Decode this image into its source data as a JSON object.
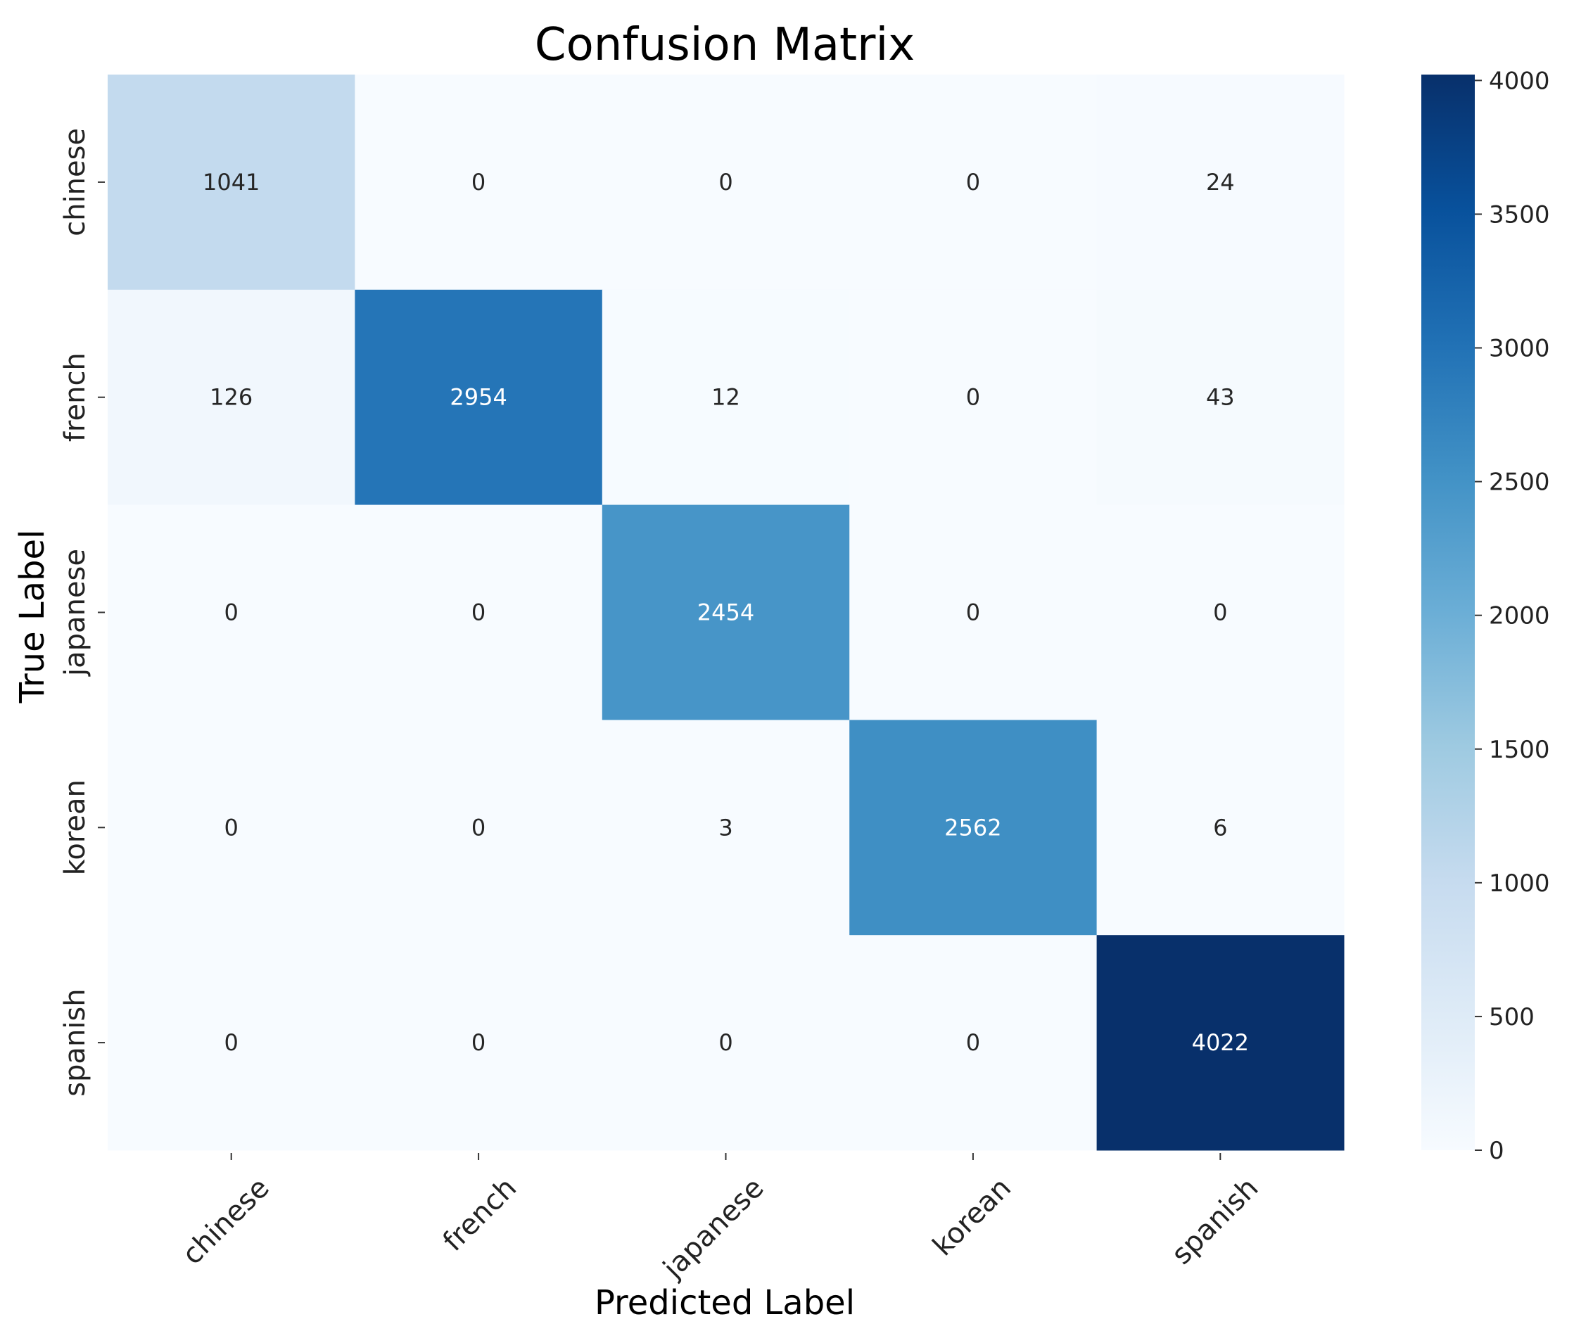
{
  "chart_data": {
    "type": "heatmap",
    "title": "Confusion Matrix",
    "xlabel": "Predicted Label",
    "ylabel": "True Label",
    "x_categories": [
      "chinese",
      "french",
      "japanese",
      "korean",
      "spanish"
    ],
    "y_categories": [
      "chinese",
      "french",
      "japanese",
      "korean",
      "spanish"
    ],
    "values": [
      [
        1041,
        0,
        0,
        0,
        24
      ],
      [
        126,
        2954,
        12,
        0,
        43
      ],
      [
        0,
        0,
        2454,
        0,
        0
      ],
      [
        0,
        0,
        3,
        2562,
        6
      ],
      [
        0,
        0,
        0,
        0,
        4022
      ]
    ],
    "colormap": "Blues",
    "colorbar": {
      "vmin": 0,
      "vmax": 4022,
      "ticks": [
        0,
        500,
        1000,
        1500,
        2000,
        2500,
        3000,
        3500,
        4000
      ]
    }
  }
}
